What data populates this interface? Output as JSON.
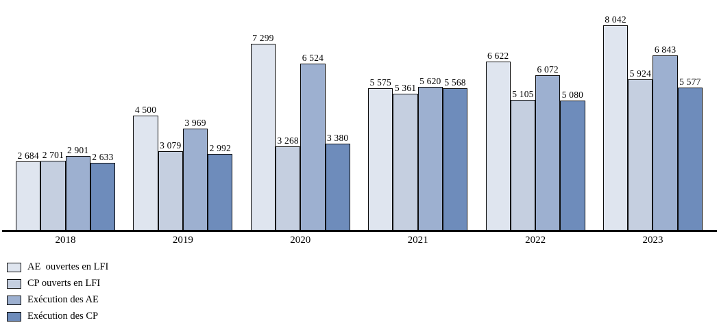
{
  "chart_data": {
    "type": "bar",
    "title": "",
    "xlabel": "",
    "ylabel": "",
    "categories": [
      "2018",
      "2019",
      "2020",
      "2021",
      "2022",
      "2023"
    ],
    "series": [
      {
        "name": "AE  ouvertes en LFI",
        "color": "#dfe5ef",
        "values": [
          2684,
          4500,
          7299,
          5575,
          6622,
          8042
        ],
        "labels": [
          "2 684",
          "4 500",
          "7 299",
          "5 575",
          "6 622",
          "8 042"
        ]
      },
      {
        "name": "CP ouverts en LFI",
        "color": "#c5cfe0",
        "values": [
          2701,
          3079,
          3268,
          5361,
          5105,
          5924
        ],
        "labels": [
          "2 701",
          "3 079",
          "3 268",
          "5 361",
          "5 105",
          "5 924"
        ]
      },
      {
        "name": "Exécution des AE",
        "color": "#9db0d0",
        "values": [
          2901,
          3969,
          6524,
          5620,
          6072,
          6843
        ],
        "labels": [
          "2 901",
          "3 969",
          "6 524",
          "5 620",
          "6 072",
          "6 843"
        ]
      },
      {
        "name": "Exécution des CP",
        "color": "#6e8cbb",
        "values": [
          2633,
          2992,
          3380,
          5568,
          5080,
          5577
        ],
        "labels": [
          "2 633",
          "2 992",
          "3 380",
          "5 568",
          "5 080",
          "5 577"
        ]
      }
    ],
    "ylim": [
      0,
      9030
    ],
    "grid": false,
    "value_labels_shown": true,
    "legend_position": "bottom-left",
    "bar_outline_color": "#0b0b0b",
    "axis_color": "#000000"
  }
}
